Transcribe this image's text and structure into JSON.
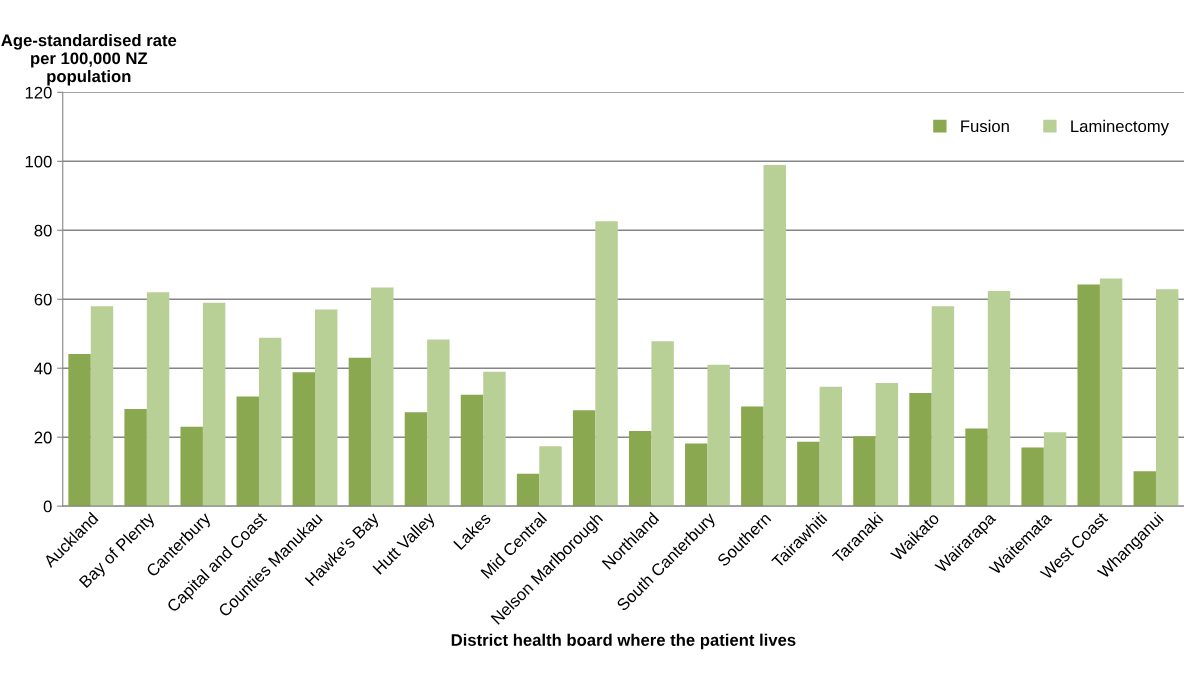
{
  "chart_data": {
    "type": "bar",
    "ylabel": "Age-standardised rate\nper 100,000 NZ\npopulation",
    "xlabel": "District health board where the patient lives",
    "categories": [
      "Auckland",
      "Bay of Plenty",
      "Canterbury",
      "Capital and Coast",
      "Counties Manukau",
      "Hawke's Bay",
      "Hutt Valley",
      "Lakes",
      "Mid Central",
      "Nelson Marlborough",
      "Northland",
      "South Canterbury",
      "Southern",
      "Tairawhiti",
      "Taranaki",
      "Waikato",
      "Wairarapa",
      "Waitemata",
      "West Coast",
      "Whanganui"
    ],
    "series": [
      {
        "name": "Fusion",
        "color": "#8aa84f",
        "values": [
          44.1,
          28.2,
          23,
          31.8,
          38.8,
          43,
          27.2,
          32.3,
          9.4,
          27.8,
          21.8,
          18.2,
          28.9,
          18.7,
          20.3,
          32.8,
          22.5,
          17,
          64.3,
          10.1
        ]
      },
      {
        "name": "Laminectomy",
        "color": "#b8cf96",
        "values": [
          58,
          62,
          59,
          48.8,
          57,
          63.4,
          48.3,
          39,
          17.4,
          82.6,
          47.8,
          41,
          98.9,
          34.6,
          35.7,
          58,
          62.4,
          21.4,
          66,
          62.9
        ]
      }
    ],
    "ylim": [
      0,
      120
    ],
    "yticks": [
      0,
      20,
      40,
      60,
      80,
      100,
      120
    ],
    "grid": "y",
    "legend": "top right"
  }
}
